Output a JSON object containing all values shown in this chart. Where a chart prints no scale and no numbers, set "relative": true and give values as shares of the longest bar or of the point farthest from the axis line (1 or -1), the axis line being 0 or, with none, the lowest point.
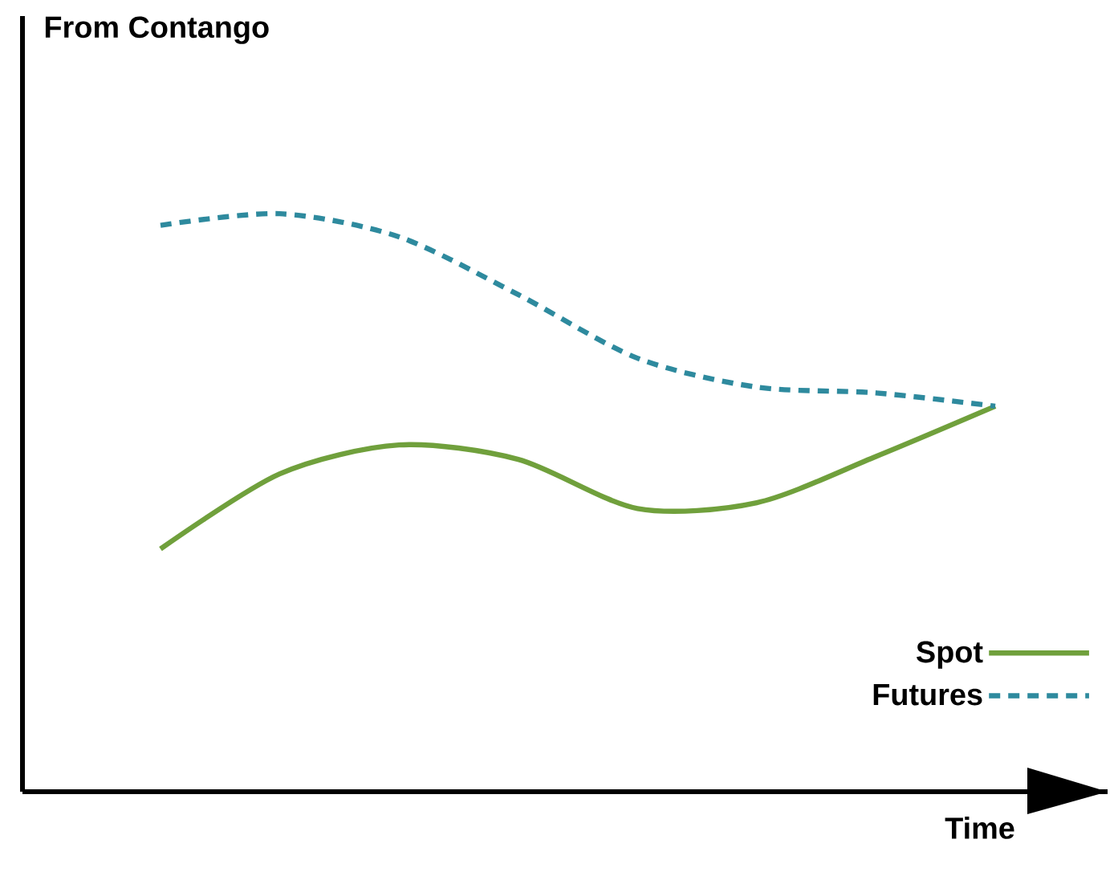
{
  "chart_data": {
    "type": "line",
    "relative": true,
    "annotations": [
      "From Contango"
    ],
    "xlabel": "Time",
    "legend": "bottom right",
    "categories": [
      null,
      null,
      null,
      null,
      null,
      null,
      null,
      null
    ],
    "series": [
      {
        "name": "Spot",
        "color": "#70a03c",
        "line_style": "solid",
        "values": [
          0.42,
          0.55,
          0.6,
          0.575,
          0.49,
          0.5,
          0.58,
          0.667
        ]
      },
      {
        "name": "Futures",
        "color": "#2e8a9e",
        "line_style": "dashed",
        "values": [
          0.98,
          1.0,
          0.96,
          0.86,
          0.75,
          0.7,
          0.69,
          0.667
        ]
      }
    ]
  }
}
